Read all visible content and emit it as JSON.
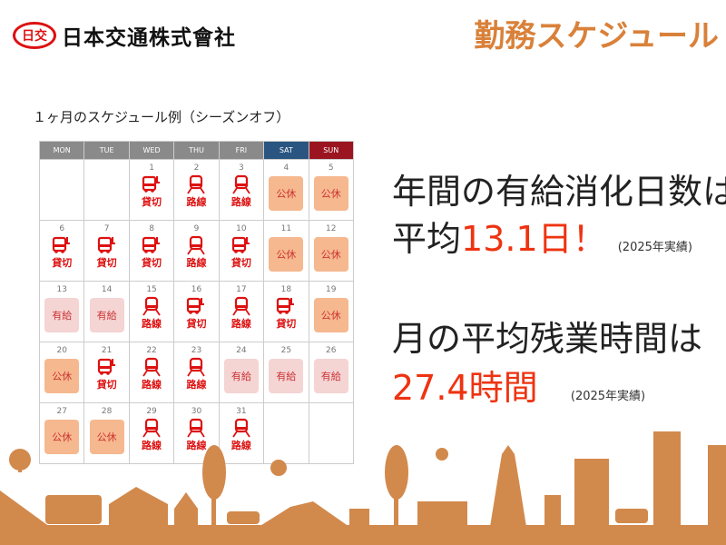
{
  "header": {
    "logo_mark": "日交",
    "company": "日本交通株式會社",
    "title": "勤務スケジュール"
  },
  "calendar": {
    "caption": "１ヶ月のスケジュール例（シーズンオフ）",
    "days": [
      "MON",
      "TUE",
      "WED",
      "THU",
      "FRI",
      "SAT",
      "SUN"
    ],
    "weeks": [
      [
        null,
        null,
        {
          "d": "1",
          "t": "貸切"
        },
        {
          "d": "2",
          "t": "路線"
        },
        {
          "d": "3",
          "t": "路線"
        },
        {
          "d": "4",
          "t": "公休"
        },
        {
          "d": "5",
          "t": "公休"
        }
      ],
      [
        {
          "d": "6",
          "t": "貸切"
        },
        {
          "d": "7",
          "t": "貸切"
        },
        {
          "d": "8",
          "t": "貸切"
        },
        {
          "d": "9",
          "t": "路線"
        },
        {
          "d": "10",
          "t": "貸切"
        },
        {
          "d": "11",
          "t": "公休"
        },
        {
          "d": "12",
          "t": "公休"
        }
      ],
      [
        {
          "d": "13",
          "t": "有給"
        },
        {
          "d": "14",
          "t": "有給"
        },
        {
          "d": "15",
          "t": "路線"
        },
        {
          "d": "16",
          "t": "貸切"
        },
        {
          "d": "17",
          "t": "路線"
        },
        {
          "d": "18",
          "t": "貸切"
        },
        {
          "d": "19",
          "t": "公休"
        }
      ],
      [
        {
          "d": "20",
          "t": "公休"
        },
        {
          "d": "21",
          "t": "貸切"
        },
        {
          "d": "22",
          "t": "路線"
        },
        {
          "d": "23",
          "t": "路線"
        },
        {
          "d": "24",
          "t": "有給"
        },
        {
          "d": "25",
          "t": "有給"
        },
        {
          "d": "26",
          "t": "有給"
        }
      ],
      [
        {
          "d": "27",
          "t": "公休"
        },
        {
          "d": "28",
          "t": "公休"
        },
        {
          "d": "29",
          "t": "路線"
        },
        {
          "d": "30",
          "t": "路線"
        },
        {
          "d": "31",
          "t": "路線"
        },
        null,
        null
      ]
    ]
  },
  "stats": {
    "line1": "年間の有給消化日数は",
    "line2_prefix": "平均",
    "line2_value": "13.1日！",
    "note1": "(2025年実績)",
    "line3": "月の平均残業時間は",
    "line4_value": "27.4時間",
    "note2": "(2025年実績)"
  },
  "colors": {
    "accent": "#d9813a",
    "red": "#e31",
    "skyline": "#d2894c",
    "holiday": "#f6b88f",
    "paid_leave": "#f5d4d4"
  }
}
